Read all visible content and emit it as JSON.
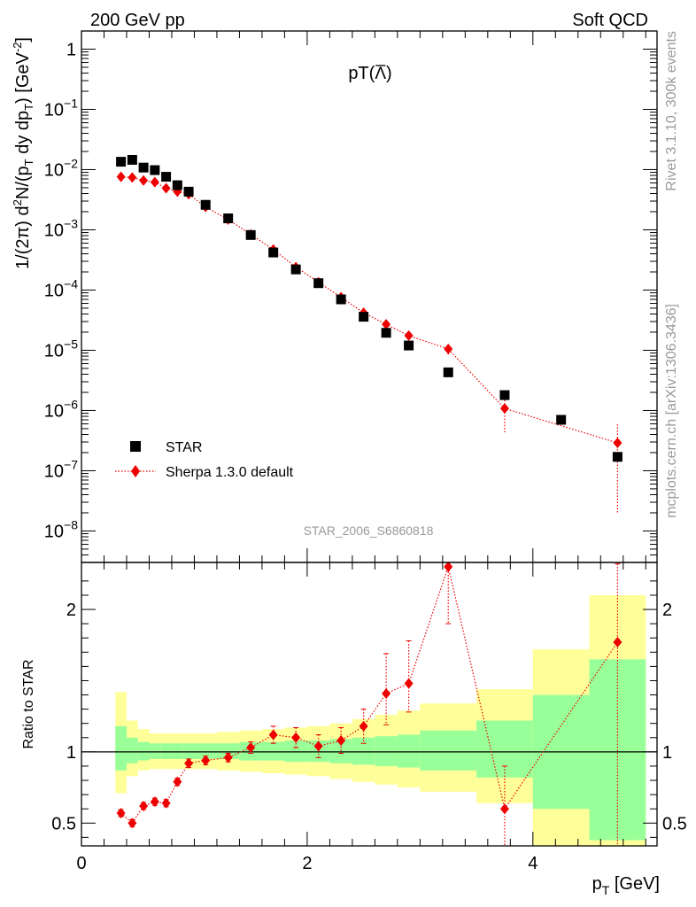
{
  "header": {
    "left": "200 GeV pp",
    "right": "Soft QCD"
  },
  "side_text": {
    "top": "Rivet 3.1.10,  300k events",
    "bottom": "mcplots.cern.ch [arXiv:1306.3436]"
  },
  "chart_data": [
    {
      "type": "scatter",
      "title": "pT(Λ̄)",
      "title_main": "pT(",
      "title_symbol": "Λ",
      "title_close": ")",
      "watermark": "STAR_2006_S6860818",
      "ylabel": "1/(2π) d²N/(p_T dy dp_T) [GeV⁻²]",
      "ylabel_parts": [
        "1/(2π) d",
        "2",
        "N/(p",
        "T",
        " dy dp",
        "T",
        ") [GeV",
        "-2",
        "]"
      ],
      "yscale": "log",
      "xlim": [
        0,
        5.1
      ],
      "ylim": [
        3e-09,
        2
      ],
      "y_ticks": [
        {
          "v": 1,
          "m": "1",
          "e": ""
        },
        {
          "v": 0.1,
          "m": "10",
          "e": "−1"
        },
        {
          "v": 0.01,
          "m": "10",
          "e": "−2"
        },
        {
          "v": 0.001,
          "m": "10",
          "e": "−3"
        },
        {
          "v": 0.0001,
          "m": "10",
          "e": "−4"
        },
        {
          "v": 1e-05,
          "m": "10",
          "e": "−5"
        },
        {
          "v": 1e-06,
          "m": "10",
          "e": "−6"
        },
        {
          "v": 1e-07,
          "m": "10",
          "e": "−7"
        },
        {
          "v": 1e-08,
          "m": "10",
          "e": "−8"
        }
      ],
      "legend_position": "bottom-left",
      "series": [
        {
          "name": "STAR",
          "marker": "square",
          "color": "#000000",
          "x": [
            0.35,
            0.45,
            0.55,
            0.65,
            0.75,
            0.85,
            0.95,
            1.1,
            1.3,
            1.5,
            1.7,
            1.9,
            2.1,
            2.3,
            2.5,
            2.7,
            2.9,
            3.25,
            3.75,
            4.25,
            4.75
          ],
          "y": [
            0.0135,
            0.0145,
            0.0108,
            0.0098,
            0.0076,
            0.0055,
            0.0043,
            0.0026,
            0.00155,
            0.00082,
            0.00042,
            0.00022,
            0.00013,
            7e-05,
            3.6e-05,
            1.95e-05,
            1.2e-05,
            4.3e-06,
            1.8e-06,
            7e-07,
            1.7e-07
          ]
        },
        {
          "name": "Sherpa 1.3.0 default",
          "marker": "diamond",
          "line": "dotted",
          "color": "#ee0000",
          "x": [
            0.35,
            0.45,
            0.55,
            0.65,
            0.75,
            0.85,
            0.95,
            1.1,
            1.3,
            1.5,
            1.7,
            1.9,
            2.1,
            2.3,
            2.5,
            2.7,
            2.9,
            3.25,
            3.75,
            4.75
          ],
          "y": [
            0.0076,
            0.0074,
            0.0066,
            0.0062,
            0.0049,
            0.0043,
            0.0039,
            0.0024,
            0.00148,
            0.00084,
            0.00047,
            0.00024,
            0.000135,
            7.6e-05,
            4.2e-05,
            2.7e-05,
            1.75e-05,
            1.05e-05,
            1.08e-06,
            2.9e-07
          ],
          "y_err_low": [
            0.0003,
            0.0003,
            0.0003,
            0.0003,
            0.0002,
            0.0002,
            0.0002,
            0.0001,
            6e-05,
            4e-05,
            3e-05,
            1.5e-05,
            1e-05,
            6e-06,
            5e-06,
            4e-06,
            3e-06,
            2e-06,
            6.5e-07,
            2.7e-07
          ],
          "y_err_high": [
            0.0003,
            0.0003,
            0.0003,
            0.0003,
            0.0002,
            0.0002,
            0.0002,
            0.0001,
            6e-05,
            4e-05,
            3e-05,
            1.5e-05,
            1e-05,
            6e-06,
            5e-06,
            4e-06,
            3e-06,
            2e-06,
            6e-07,
            3e-07
          ]
        }
      ]
    },
    {
      "type": "scatter",
      "ylabel": "Ratio to STAR",
      "xlabel": "p_T [GeV]",
      "xlabel_parts": [
        "p",
        "T",
        " [GeV]"
      ],
      "xlim": [
        0,
        5.1
      ],
      "ylim": [
        0.34,
        2.33
      ],
      "x_ticks": [
        0,
        2,
        4
      ],
      "y_ticks": [
        0.5,
        1,
        2
      ],
      "reference_line": 1,
      "bands": {
        "bins": [
          [
            0.3,
            0.4
          ],
          [
            0.4,
            0.5
          ],
          [
            0.5,
            0.6
          ],
          [
            0.6,
            0.7
          ],
          [
            0.7,
            0.8
          ],
          [
            0.8,
            0.9
          ],
          [
            0.9,
            1.0
          ],
          [
            1.0,
            1.2
          ],
          [
            1.2,
            1.4
          ],
          [
            1.4,
            1.6
          ],
          [
            1.6,
            1.8
          ],
          [
            1.8,
            2.0
          ],
          [
            2.0,
            2.2
          ],
          [
            2.2,
            2.4
          ],
          [
            2.4,
            2.6
          ],
          [
            2.6,
            2.8
          ],
          [
            2.8,
            3.0
          ],
          [
            3.0,
            3.5
          ],
          [
            3.5,
            4.0
          ],
          [
            4.0,
            4.5
          ],
          [
            4.5,
            5.0
          ]
        ],
        "green_low": [
          0.87,
          0.92,
          0.94,
          0.95,
          0.95,
          0.95,
          0.95,
          0.95,
          0.95,
          0.94,
          0.94,
          0.93,
          0.93,
          0.92,
          0.91,
          0.9,
          0.89,
          0.87,
          0.82,
          0.6,
          0.38
        ],
        "green_high": [
          1.18,
          1.1,
          1.07,
          1.06,
          1.06,
          1.06,
          1.06,
          1.06,
          1.06,
          1.07,
          1.07,
          1.08,
          1.08,
          1.09,
          1.1,
          1.11,
          1.12,
          1.15,
          1.22,
          1.4,
          1.65
        ],
        "yellow_low": [
          0.71,
          0.83,
          0.87,
          0.88,
          0.88,
          0.88,
          0.88,
          0.88,
          0.87,
          0.86,
          0.85,
          0.84,
          0.83,
          0.81,
          0.79,
          0.77,
          0.75,
          0.72,
          0.64,
          0.3,
          0.3
        ],
        "yellow_high": [
          1.42,
          1.22,
          1.16,
          1.13,
          1.13,
          1.13,
          1.13,
          1.13,
          1.14,
          1.15,
          1.16,
          1.17,
          1.18,
          1.2,
          1.23,
          1.26,
          1.29,
          1.34,
          1.44,
          1.72,
          2.1
        ]
      },
      "series": [
        {
          "name": "Sherpa 1.3.0 default",
          "marker": "diamond",
          "line": "dotted",
          "color": "#ee0000",
          "x": [
            0.35,
            0.45,
            0.55,
            0.65,
            0.75,
            0.85,
            0.95,
            1.1,
            1.3,
            1.5,
            1.7,
            1.9,
            2.1,
            2.3,
            2.5,
            2.7,
            2.9,
            3.25,
            3.75,
            4.75
          ],
          "y": [
            0.57,
            0.5,
            0.62,
            0.65,
            0.64,
            0.79,
            0.92,
            0.94,
            0.96,
            1.03,
            1.12,
            1.1,
            1.04,
            1.08,
            1.18,
            1.41,
            1.48,
            2.3,
            0.6,
            1.77
          ],
          "y_err_low": [
            0.025,
            0.025,
            0.025,
            0.025,
            0.025,
            0.025,
            0.03,
            0.03,
            0.03,
            0.04,
            0.06,
            0.07,
            0.08,
            0.09,
            0.12,
            0.22,
            0.2,
            0.4,
            0.3,
            1.6
          ],
          "y_err_high": [
            0.025,
            0.025,
            0.025,
            0.025,
            0.025,
            0.025,
            0.03,
            0.03,
            0.03,
            0.04,
            0.06,
            0.07,
            0.08,
            0.09,
            0.12,
            0.28,
            0.3,
            0.1,
            0.3,
            0.55
          ]
        }
      ]
    }
  ]
}
